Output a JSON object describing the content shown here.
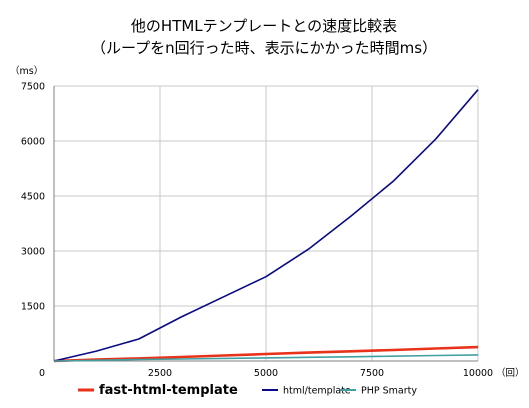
{
  "chart_data": {
    "type": "line",
    "title": [
      "他のHTMLテンプレートとの速度比較表",
      "（ループをn回行った時、表示にかかった時間ms）"
    ],
    "ylabel": "（ms）",
    "xlabel": "（回）",
    "xlim": [
      0,
      10000
    ],
    "ylim": [
      0,
      7500
    ],
    "xticks": [
      0,
      2500,
      5000,
      7500,
      10000
    ],
    "yticks": [
      1500,
      3000,
      4500,
      6000,
      7500
    ],
    "y_zero_label": "0",
    "grid": true,
    "legend": "bottom",
    "series": [
      {
        "name": "fast-html-template",
        "color": "#e8321a",
        "x": [
          0,
          1000,
          2000,
          3000,
          4000,
          5000,
          6000,
          7000,
          8000,
          9000,
          10000
        ],
        "y": [
          0,
          40,
          70,
          110,
          150,
          190,
          230,
          265,
          300,
          340,
          380
        ]
      },
      {
        "name": "html/template",
        "color": "#0a0a84",
        "x": [
          0,
          1000,
          2000,
          3000,
          4000,
          5000,
          6000,
          7000,
          8000,
          9000,
          10000
        ],
        "y": [
          0,
          270,
          600,
          1200,
          1750,
          2300,
          3050,
          3950,
          4900,
          6050,
          7400
        ]
      },
      {
        "name": "PHP Smarty",
        "color": "#40a0a0",
        "x": [
          0,
          1000,
          2000,
          3000,
          4000,
          5000,
          6000,
          7000,
          8000,
          9000,
          10000
        ],
        "y": [
          0,
          20,
          40,
          55,
          70,
          85,
          100,
          115,
          130,
          150,
          165
        ]
      }
    ]
  }
}
